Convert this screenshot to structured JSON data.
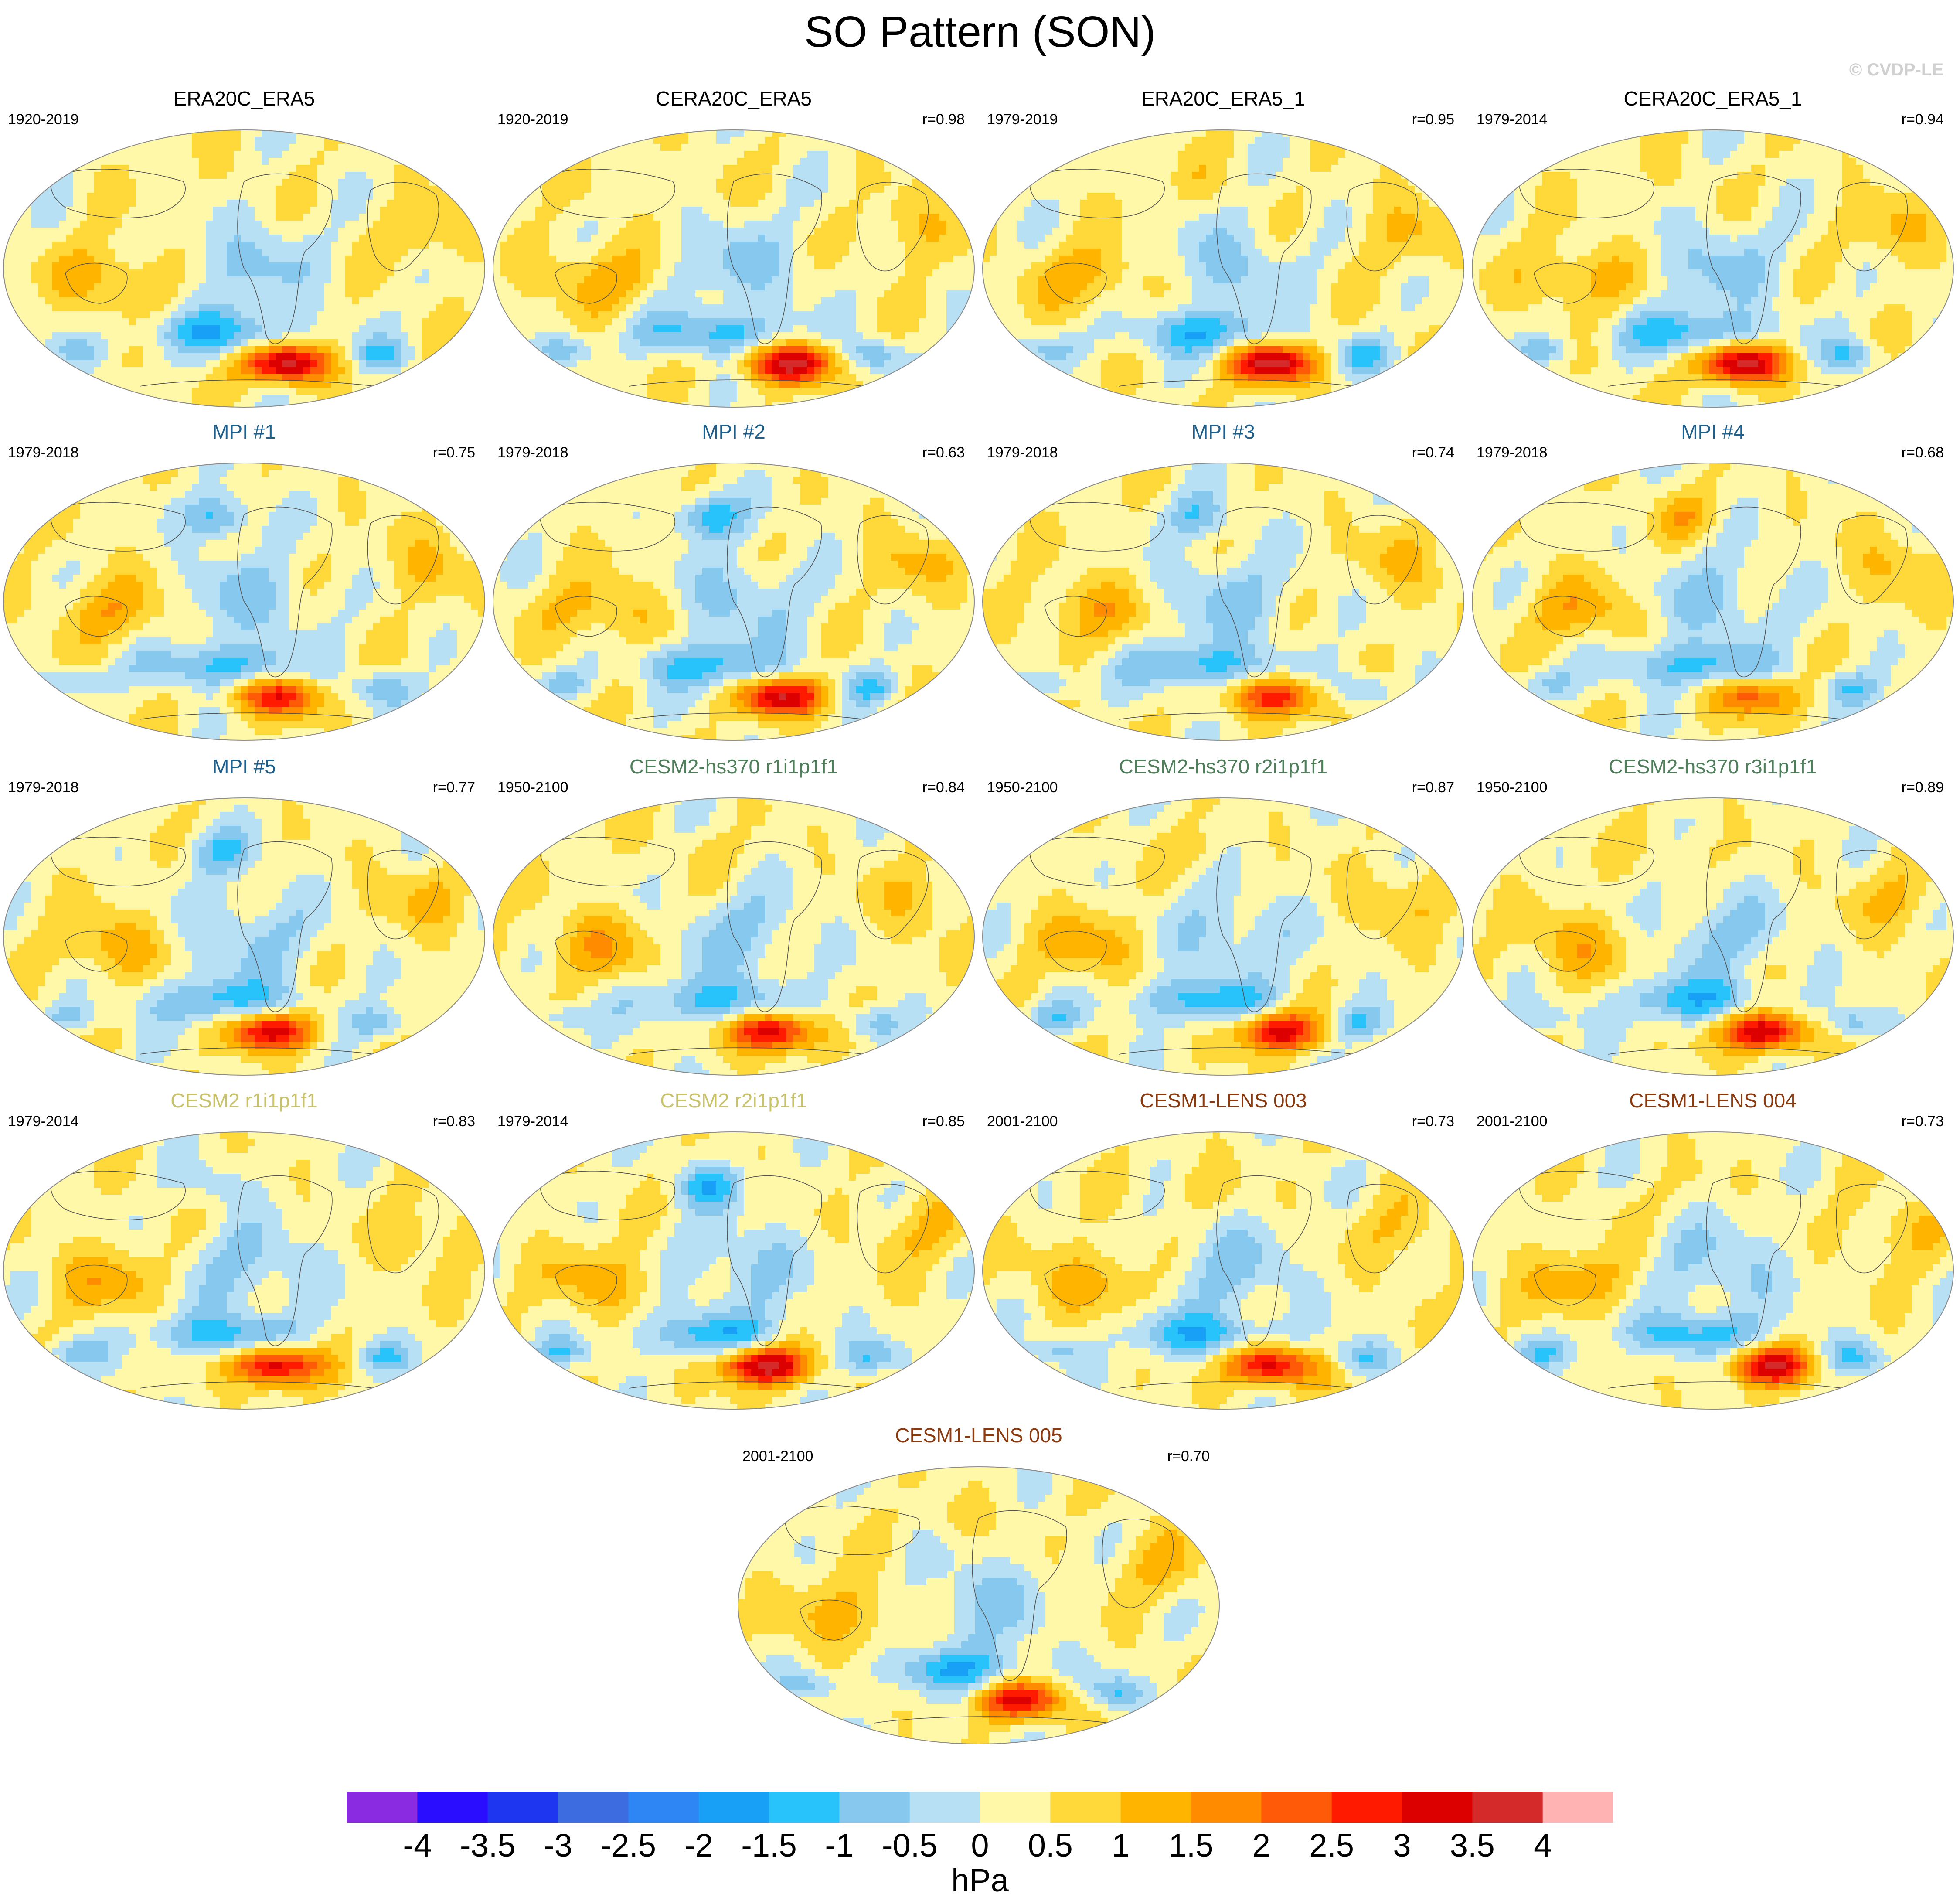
{
  "title": "SO Pattern (SON)",
  "watermark": "© CVDP-LE",
  "units": "hPa",
  "colors": {
    "levels": [
      "#8a2be2",
      "#2a0cff",
      "#1e36f0",
      "#3d6be0",
      "#2e86f5",
      "#17a0f5",
      "#27c3fa",
      "#86c8ee",
      "#b8e0f5",
      "#fff8a8",
      "#ffd83a",
      "#ffb400",
      "#ff8c00",
      "#ff5a08",
      "#ff1a00",
      "#dd0000",
      "#d42a2a",
      "#ffb3b3"
    ],
    "mc_color_obs": "#000000",
    "mc_color_mpi": "#1f5f8b",
    "mc_color_cesm2hs": "#4f7f5a",
    "mc_color_cesm2": "#c8c26a",
    "mc_color_lens": "#8b3a0f"
  },
  "chart_data": {
    "type": "heatmap",
    "projection": "Robinson-like global map, Pacific-centered",
    "colorbar": {
      "ticks": [
        "-4",
        "-3.5",
        "-3",
        "-2.5",
        "-2",
        "-1.5",
        "-1",
        "-0.5",
        "0",
        "0.5",
        "1",
        "1.5",
        "2",
        "2.5",
        "3",
        "3.5",
        "4"
      ],
      "min": -4,
      "max": 4,
      "step": 0.5
    },
    "panels": [
      {
        "name": "ERA20C_ERA5",
        "period": "1920-2019",
        "r": "",
        "group": "obs",
        "amp": 3.6,
        "nh": 0.2
      },
      {
        "name": "CERA20C_ERA5",
        "period": "1920-2019",
        "r": "r=0.98",
        "group": "obs",
        "amp": 3.4,
        "nh": 0.2
      },
      {
        "name": "ERA20C_ERA5_1",
        "period": "1979-2019",
        "r": "r=0.95",
        "group": "obs",
        "amp": 3.6,
        "nh": 0.3
      },
      {
        "name": "CERA20C_ERA5_1",
        "period": "1979-2014",
        "r": "r=0.94",
        "group": "obs",
        "amp": 3.6,
        "nh": 0.3
      },
      {
        "name": "MPI #1",
        "period": "1979-2018",
        "r": "r=0.75",
        "group": "mpi",
        "amp": 2.6,
        "nh": -1.6
      },
      {
        "name": "MPI #2",
        "period": "1979-2018",
        "r": "r=0.63",
        "group": "mpi",
        "amp": 3.2,
        "nh": -1.7
      },
      {
        "name": "MPI #3",
        "period": "1979-2018",
        "r": "r=0.74",
        "group": "mpi",
        "amp": 2.6,
        "nh": -1.2
      },
      {
        "name": "MPI #4",
        "period": "1979-2018",
        "r": "r=0.68",
        "group": "mpi",
        "amp": 2.0,
        "nh": 0.8
      },
      {
        "name": "MPI #5",
        "period": "1979-2018",
        "r": "r=0.77",
        "group": "mpi",
        "amp": 3.0,
        "nh": -1.2
      },
      {
        "name": "CESM2-hs370 r1i1p1f1",
        "period": "1950-2100",
        "r": "r=0.84",
        "group": "cesm2hs",
        "amp": 3.2,
        "nh": 0.4
      },
      {
        "name": "CESM2-hs370 r2i1p1f1",
        "period": "1950-2100",
        "r": "r=0.87",
        "group": "cesm2hs",
        "amp": 3.0,
        "nh": 0.4
      },
      {
        "name": "CESM2-hs370 r3i1p1f1",
        "period": "1950-2100",
        "r": "r=0.89",
        "group": "cesm2hs",
        "amp": 3.4,
        "nh": 0.4
      },
      {
        "name": "CESM2 r1i1p1f1",
        "period": "1979-2014",
        "r": "r=0.83",
        "group": "cesm2",
        "amp": 3.4,
        "nh": -0.6
      },
      {
        "name": "CESM2 r2i1p1f1",
        "period": "1979-2014",
        "r": "r=0.85",
        "group": "cesm2",
        "amp": 3.6,
        "nh": -1.4
      },
      {
        "name": "CESM1-LENS 003",
        "period": "2001-2100",
        "r": "r=0.73",
        "group": "lens",
        "amp": 3.2,
        "nh": 0.6
      },
      {
        "name": "CESM1-LENS 004",
        "period": "2001-2100",
        "r": "r=0.73",
        "group": "lens",
        "amp": 3.0,
        "nh": 0.2
      },
      {
        "name": "CESM1-LENS 005",
        "period": "2001-2100",
        "r": "r=0.70",
        "group": "lens",
        "amp": 2.8,
        "nh": 0.4
      }
    ]
  }
}
